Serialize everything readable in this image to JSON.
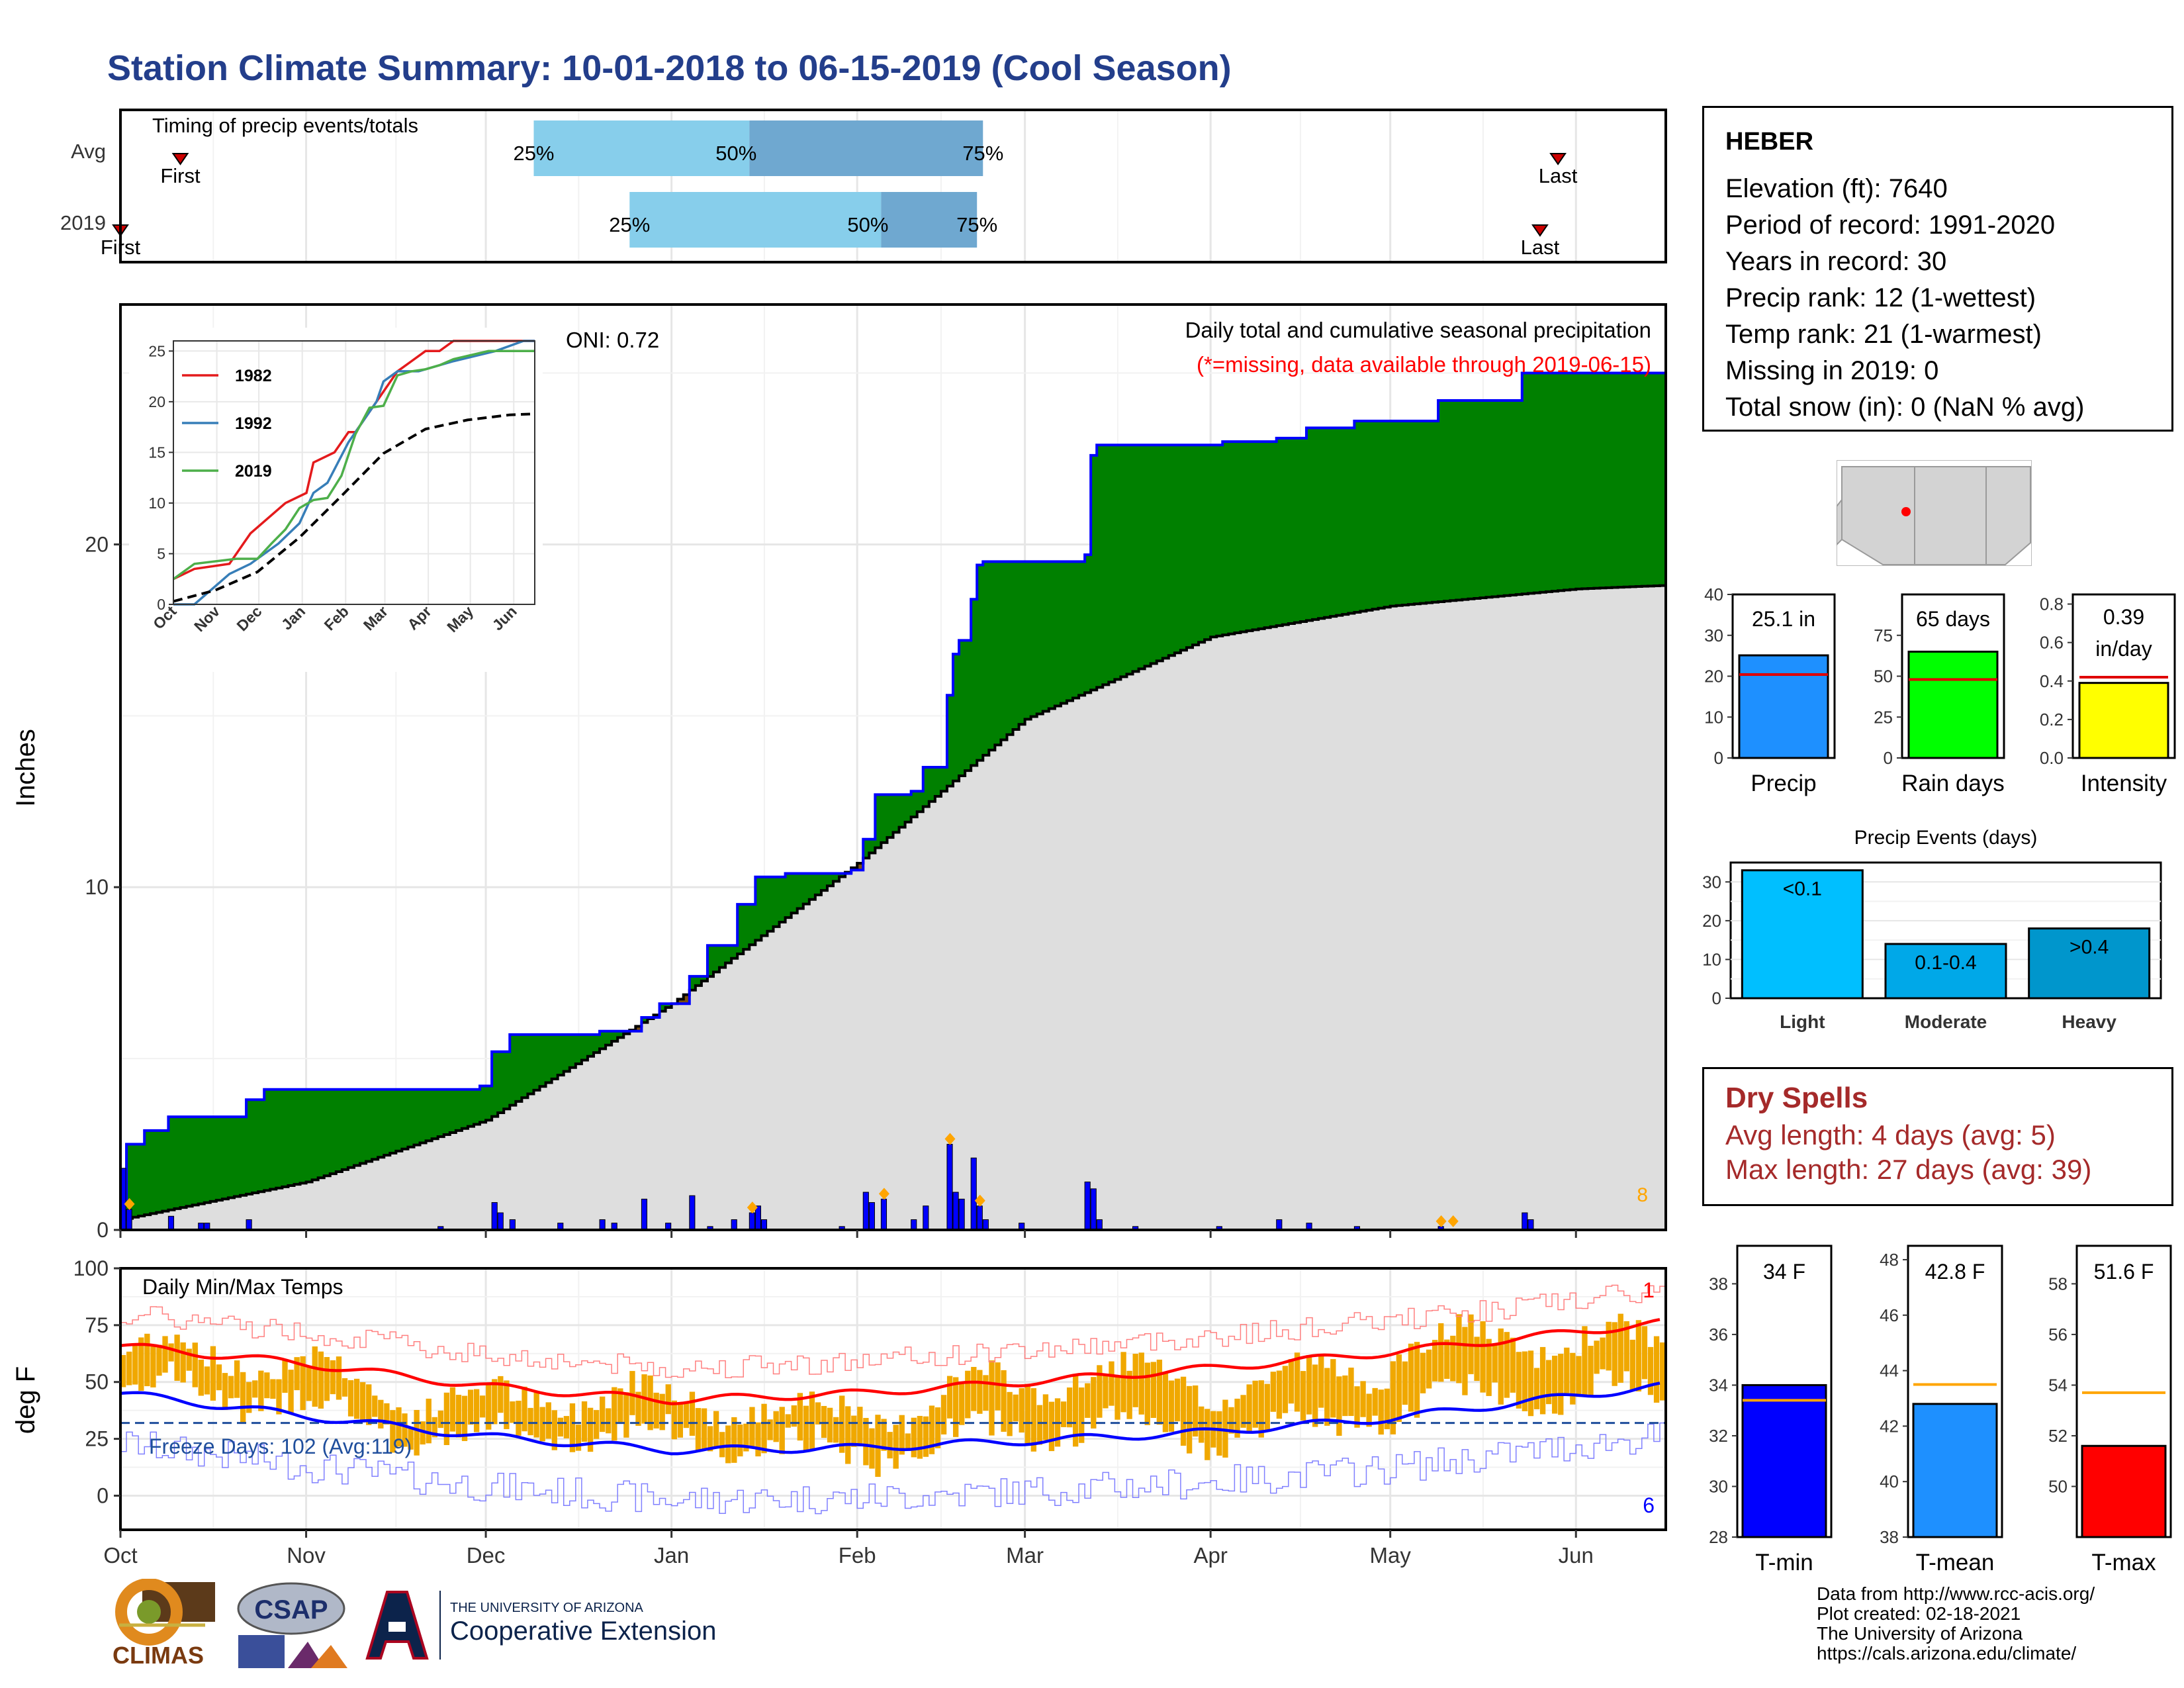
{
  "page": {
    "title": "Station Climate Summary: 10-01-2018 to 06-15-2019 (Cool Season)"
  },
  "timing": {
    "title": "Timing of precip events/totals",
    "rows": [
      {
        "label": "Avg",
        "first": "2018-10-11",
        "q25": "2018-12-09",
        "q50": "2019-01-14",
        "q75": "2019-02-22",
        "last": "2019-05-29",
        "first_label": "First",
        "last_label": "Last",
        "p25": "25%",
        "p50": "50%",
        "p75": "75%"
      },
      {
        "label": "2019",
        "first": "2018-10-01",
        "q25": "2018-12-25",
        "q50": "2019-02-05",
        "q75": "2019-02-21",
        "last": "2019-05-26",
        "first_label": "First",
        "last_label": "Last",
        "p25": "25%",
        "p50": "50%",
        "p75": "75%"
      }
    ]
  },
  "info": {
    "station": "HEBER",
    "lines": [
      "Elevation (ft): 7640",
      "Period of record: 1991-2020",
      "Years in record: 30",
      "Precip rank: 12 (1-wettest)",
      "Temp rank: 21 (1-warmest)",
      "Missing in 2019: 0",
      "Total snow (in): 0 (NaN % avg)"
    ]
  },
  "precip_panel": {
    "ylabel": "Inches",
    "legend_title": "Daily total and cumulative seasonal precipitation",
    "legend_note": "(*=missing, data available through 2019-06-15)",
    "oni": "ONI: 0.72",
    "event_count": "8"
  },
  "temp_panel": {
    "ylabel": "deg F",
    "title": "Daily Min/Max Temps",
    "freeze": "Freeze Days: 102 (Avg:119)",
    "max_count": "1",
    "min_count": "6"
  },
  "dry_spells": {
    "title": "Dry Spells",
    "avg": "Avg length: 4 days (avg: 5)",
    "max": "Max length: 27 days (avg: 39)"
  },
  "credits": [
    "Data from http://www.rcc-acis.org/",
    "Plot created: 02-18-2021",
    "The University of Arizona",
    "https://cals.arizona.edu/climate/"
  ],
  "logos": {
    "climas": "CLIMAS",
    "csap": "CSAP",
    "ua_small": "THE UNIVERSITY OF ARIZONA",
    "ua_big": "Cooperative Extension"
  },
  "colors": {
    "title": "#233e8b",
    "cum_2019": "#0000ff",
    "above_avg": "#008000",
    "below_avg": "#7a4f0d",
    "avg_fill": "#dedede",
    "daily_bar": "#0000ff",
    "event_marker": "#ffa500",
    "tmax": "#ff0000",
    "tmin": "#0000ff",
    "range_bar": "#f0a800",
    "dry_spells": "#a52a2a"
  },
  "chart_data": [
    {
      "id": "precip_main",
      "type": "area",
      "x_axis": {
        "ticks": [
          "Oct",
          "Nov",
          "Dec",
          "Jan",
          "Feb",
          "Mar",
          "Apr",
          "May",
          "Jun"
        ]
      },
      "ylim": [
        0,
        27
      ],
      "y_ticks": [
        "0",
        "10",
        "20"
      ],
      "series": [
        {
          "name": "2019",
          "x": [
            "2018-10-01",
            "2018-10-02",
            "2018-10-05",
            "2018-10-09",
            "2018-10-22",
            "2018-10-25",
            "2018-11-30",
            "2018-12-02",
            "2018-12-05",
            "2018-12-20",
            "2018-12-27",
            "2018-12-30",
            "2019-01-04",
            "2019-01-07",
            "2019-01-12",
            "2019-01-15",
            "2019-01-20",
            "2019-01-31",
            "2019-02-02",
            "2019-02-04",
            "2019-02-10",
            "2019-02-12",
            "2019-02-16",
            "2019-02-17",
            "2019-02-18",
            "2019-02-20",
            "2019-02-21",
            "2019-02-22",
            "2019-03-11",
            "2019-03-12",
            "2019-03-13",
            "2019-04-03",
            "2019-04-12",
            "2019-04-17",
            "2019-04-25",
            "2019-05-09",
            "2019-05-23",
            "2019-06-15"
          ],
          "y": [
            0.9,
            2.5,
            2.9,
            3.3,
            3.8,
            4.1,
            4.2,
            5.2,
            5.7,
            5.8,
            6.2,
            6.6,
            7.4,
            8.3,
            9.5,
            10.3,
            10.4,
            10.5,
            11.4,
            12.7,
            12.8,
            13.5,
            15.6,
            16.8,
            17.2,
            18.4,
            19.4,
            19.5,
            19.7,
            22.6,
            22.9,
            23.0,
            23.1,
            23.4,
            23.6,
            24.2,
            25.0,
            25.0
          ]
        },
        {
          "name": "Avg",
          "x": [
            "2018-10-01",
            "2018-11-01",
            "2018-12-01",
            "2019-01-01",
            "2019-02-01",
            "2019-03-01",
            "2019-04-01",
            "2019-05-01",
            "2019-06-01",
            "2019-06-15"
          ],
          "y": [
            0.3,
            1.4,
            3.2,
            6.6,
            10.7,
            14.9,
            17.3,
            18.2,
            18.7,
            18.8
          ]
        }
      ],
      "daily_precip": {
        "x": [
          "2018-10-01",
          "2018-10-02",
          "2018-10-09",
          "2018-10-14",
          "2018-10-15",
          "2018-10-22",
          "2018-11-23",
          "2018-12-02",
          "2018-12-03",
          "2018-12-05",
          "2018-12-13",
          "2018-12-20",
          "2018-12-22",
          "2018-12-27",
          "2018-12-31",
          "2019-01-04",
          "2019-01-07",
          "2019-01-11",
          "2019-01-14",
          "2019-01-15",
          "2019-01-16",
          "2019-01-29",
          "2019-02-02",
          "2019-02-03",
          "2019-02-05",
          "2019-02-10",
          "2019-02-12",
          "2019-02-16",
          "2019-02-17",
          "2019-02-18",
          "2019-02-20",
          "2019-02-21",
          "2019-02-22",
          "2019-02-28",
          "2019-03-11",
          "2019-03-12",
          "2019-03-13",
          "2019-03-19",
          "2019-04-02",
          "2019-04-12",
          "2019-04-17",
          "2019-04-25",
          "2019-05-09",
          "2019-05-23",
          "2019-05-24"
        ],
        "y": [
          1.8,
          0.6,
          0.4,
          0.2,
          0.2,
          0.3,
          0.1,
          0.8,
          0.5,
          0.3,
          0.2,
          0.3,
          0.2,
          0.9,
          0.2,
          1.0,
          0.1,
          0.3,
          0.5,
          0.7,
          0.3,
          0.1,
          1.1,
          0.8,
          0.9,
          0.3,
          0.7,
          2.5,
          1.1,
          0.9,
          2.1,
          0.7,
          0.3,
          0.2,
          1.4,
          1.2,
          0.3,
          0.1,
          0.1,
          0.3,
          0.2,
          0.1,
          0.1,
          0.5,
          0.3
        ]
      },
      "event_markers": [
        "2018-10-02",
        "2019-01-14",
        "2019-02-05",
        "2019-02-16",
        "2019-02-21",
        "2019-05-09",
        "2019-05-11"
      ]
    },
    {
      "id": "cumulative_inset",
      "type": "line",
      "x_axis": {
        "ticks": [
          "Oct",
          "Nov",
          "Dec",
          "Jan",
          "Feb",
          "Mar",
          "Apr",
          "May",
          "Jun"
        ]
      },
      "ylim": [
        0,
        26
      ],
      "y_ticks": [
        "0",
        "5",
        "10",
        "15",
        "20",
        "25"
      ],
      "series": [
        {
          "name": "1982",
          "x": [
            0,
            15,
            40,
            50,
            55,
            80,
            95,
            100,
            115,
            125,
            130,
            140,
            150,
            160,
            170,
            180,
            190,
            200,
            230,
            250,
            258
          ],
          "y": [
            2.5,
            3.5,
            4,
            6,
            7,
            10,
            11,
            14,
            15,
            17,
            17,
            19,
            21,
            23,
            24,
            25,
            25,
            26,
            26,
            26,
            26
          ]
        },
        {
          "name": "1992",
          "x": [
            0,
            15,
            40,
            55,
            75,
            90,
            100,
            110,
            125,
            135,
            145,
            150,
            160,
            175,
            200,
            230,
            250,
            258
          ],
          "y": [
            0,
            0,
            3,
            4,
            6,
            8,
            11,
            12,
            16,
            18,
            20,
            22,
            23,
            23,
            24,
            25,
            26,
            26
          ]
        },
        {
          "name": "2019",
          "x": [
            0,
            15,
            45,
            60,
            70,
            80,
            90,
            100,
            110,
            120,
            130,
            140,
            150,
            160,
            170,
            180,
            190,
            200,
            225,
            235,
            258
          ],
          "y": [
            2.5,
            4,
            4.5,
            4.5,
            6,
            7.4,
            9.5,
            10.3,
            10.5,
            12.7,
            16.8,
            19.4,
            19.6,
            22.6,
            23,
            23.2,
            23.6,
            24.2,
            25,
            25,
            25
          ]
        },
        {
          "name": "Avg",
          "x": [
            0,
            30,
            60,
            90,
            120,
            150,
            180,
            210,
            240,
            258
          ],
          "y": [
            0.3,
            1.4,
            3.2,
            6.6,
            10.7,
            14.9,
            17.3,
            18.2,
            18.7,
            18.8
          ]
        }
      ]
    },
    {
      "id": "temperature",
      "type": "line",
      "x_axis": {
        "ticks": [
          "Oct",
          "Nov",
          "Dec",
          "Jan",
          "Feb",
          "Mar",
          "Apr",
          "May",
          "Jun"
        ]
      },
      "ylim": [
        -15,
        100
      ],
      "y_ticks": [
        "0",
        "25",
        "50",
        "75",
        "100"
      ],
      "series": [
        {
          "name": "Avg Tmax",
          "x": [
            "2018-10-01",
            "2018-11-01",
            "2018-12-01",
            "2019-01-01",
            "2019-02-01",
            "2019-03-01",
            "2019-04-01",
            "2019-05-01",
            "2019-06-01",
            "2019-06-15"
          ],
          "y": [
            66,
            58,
            48,
            42,
            45,
            50,
            56,
            63,
            72,
            76
          ]
        },
        {
          "name": "Avg Tmin",
          "x": [
            "2018-10-01",
            "2018-11-01",
            "2018-12-01",
            "2019-01-01",
            "2019-02-01",
            "2019-03-01",
            "2019-04-01",
            "2019-05-01",
            "2019-06-01",
            "2019-06-15"
          ],
          "y": [
            45,
            35,
            26,
            20,
            21,
            24,
            28,
            34,
            44,
            48
          ]
        },
        {
          "name": "Freeze line",
          "x": [
            "2018-10-01",
            "2019-06-15"
          ],
          "y": [
            32,
            32
          ]
        }
      ]
    },
    {
      "id": "precip_bars",
      "type": "bar",
      "categories": [
        "Precip"
      ],
      "values": [
        25.1
      ],
      "value_label": [
        "25.1 in"
      ],
      "avg": 20.4,
      "ylim": [
        0,
        40
      ],
      "y_ticks": [
        "0",
        "10",
        "20",
        "30",
        "40"
      ]
    },
    {
      "id": "rain_days",
      "type": "bar",
      "categories": [
        "Rain days"
      ],
      "values": [
        65
      ],
      "value_label": [
        "65 days"
      ],
      "avg": 48,
      "ylim": [
        0,
        100
      ],
      "y_ticks": [
        "0",
        "25",
        "50",
        "75"
      ]
    },
    {
      "id": "intensity",
      "type": "bar",
      "categories": [
        "Intensity"
      ],
      "values": [
        0.39
      ],
      "value_label": [
        "0.39",
        "in/day"
      ],
      "avg": 0.42,
      "ylim": [
        0,
        0.85
      ],
      "y_ticks": [
        "0.0",
        "0.2",
        "0.4",
        "0.6",
        "0.8"
      ]
    },
    {
      "id": "precip_events",
      "type": "bar",
      "title": "Precip Events (days)",
      "categories": [
        "Light",
        "Moderate",
        "Heavy"
      ],
      "values": [
        33,
        14,
        18
      ],
      "value_labels": [
        "<0.1",
        "0.1-0.4",
        ">0.4"
      ],
      "ylim": [
        0,
        35
      ],
      "y_ticks": [
        "0",
        "10",
        "20",
        "30"
      ],
      "colors": [
        "#00bfff",
        "#00a8e8",
        "#0096cc"
      ]
    },
    {
      "id": "tmin",
      "type": "bar",
      "categories": [
        "T-min"
      ],
      "values": [
        34
      ],
      "value_label": [
        "34 F"
      ],
      "avg": 33.4,
      "ylim": [
        28,
        39.5
      ],
      "y_ticks": [
        "28",
        "30",
        "32",
        "34",
        "36",
        "38"
      ]
    },
    {
      "id": "tmean",
      "type": "bar",
      "categories": [
        "T-mean"
      ],
      "values": [
        42.8
      ],
      "value_label": [
        "42.8 F"
      ],
      "avg": 43.5,
      "ylim": [
        38,
        48.5
      ],
      "y_ticks": [
        "38",
        "40",
        "42",
        "44",
        "46",
        "48"
      ]
    },
    {
      "id": "tmax",
      "type": "bar",
      "categories": [
        "T-max"
      ],
      "values": [
        51.6
      ],
      "value_label": [
        "51.6 F"
      ],
      "avg": 53.7,
      "ylim": [
        48,
        59.5
      ],
      "y_ticks": [
        "50",
        "52",
        "54",
        "56",
        "58"
      ]
    }
  ]
}
